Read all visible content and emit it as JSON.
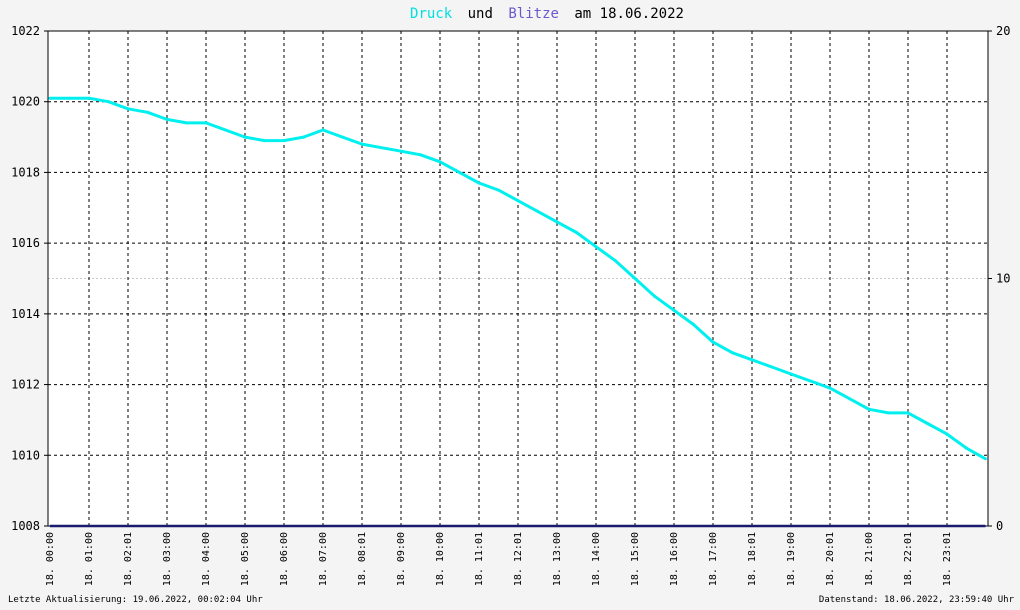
{
  "title": {
    "parts": [
      {
        "text": "Druck",
        "color": "#00e0e0"
      },
      {
        "text": "und",
        "color": "#000000"
      },
      {
        "text": "Blitze",
        "color": "#6a5acd"
      },
      {
        "text": "am 18.06.2022",
        "color": "#000000"
      }
    ]
  },
  "footer": {
    "left": "Letzte Aktualisierung: 19.06.2022, 00:02:04 Uhr",
    "right": "Datenstand: 18.06.2022, 23:59:40 Uhr"
  },
  "colors": {
    "background": "#f4f4f4",
    "plot_background": "#ffffff",
    "pressure_line": "#00f0f0",
    "lightning_line": "#1a1a6e",
    "grid": "#000000",
    "midline": "#c8c8c8"
  },
  "chart_data": {
    "type": "line",
    "grid": true,
    "y_left": {
      "range": [
        1008,
        1022
      ],
      "ticks": [
        "1008",
        "1010",
        "1012",
        "1014",
        "1016",
        "1018",
        "1020",
        "1022"
      ]
    },
    "y_right": {
      "range": [
        0,
        20
      ],
      "ticks": [
        "0",
        "10",
        "20"
      ]
    },
    "x_ticks": [
      "18. 00:00",
      "18. 01:00",
      "18. 02:01",
      "18. 03:00",
      "18. 04:00",
      "18. 05:00",
      "18. 06:00",
      "18. 07:00",
      "18. 08:01",
      "18. 09:00",
      "18. 10:00",
      "18. 11:01",
      "18. 12:01",
      "18. 13:00",
      "18. 14:00",
      "18. 15:00",
      "18. 16:00",
      "18. 17:00",
      "18. 18:01",
      "18. 19:00",
      "18. 20:01",
      "18. 21:00",
      "18. 22:01",
      "18. 23:01"
    ],
    "series": [
      {
        "name": "Druck",
        "axis": "left",
        "x": [
          "00:00",
          "00:30",
          "01:00",
          "01:30",
          "02:00",
          "02:30",
          "03:00",
          "03:30",
          "04:00",
          "04:30",
          "05:00",
          "05:30",
          "06:00",
          "06:30",
          "07:00",
          "07:30",
          "08:00",
          "08:30",
          "09:00",
          "09:30",
          "10:00",
          "10:30",
          "11:00",
          "11:30",
          "12:00",
          "12:30",
          "13:00",
          "13:30",
          "14:00",
          "14:30",
          "15:00",
          "15:30",
          "16:00",
          "16:30",
          "17:00",
          "17:30",
          "18:00",
          "18:30",
          "19:00",
          "19:30",
          "20:00",
          "20:30",
          "21:00",
          "21:30",
          "22:00",
          "22:30",
          "23:00",
          "23:30",
          "23:59"
        ],
        "y": [
          1020.1,
          1020.1,
          1020.1,
          1020.0,
          1019.8,
          1019.7,
          1019.5,
          1019.4,
          1019.4,
          1019.2,
          1019.0,
          1018.9,
          1018.9,
          1019.0,
          1019.2,
          1019.0,
          1018.8,
          1018.7,
          1018.6,
          1018.5,
          1018.3,
          1018.0,
          1017.7,
          1017.5,
          1017.2,
          1016.9,
          1016.6,
          1016.3,
          1015.9,
          1015.5,
          1015.0,
          1014.5,
          1014.1,
          1013.7,
          1013.2,
          1012.9,
          1012.7,
          1012.5,
          1012.3,
          1012.1,
          1011.9,
          1011.6,
          1011.3,
          1011.2,
          1011.2,
          1010.9,
          1010.6,
          1010.2,
          1009.9
        ]
      },
      {
        "name": "Blitze",
        "axis": "right",
        "x": [
          "00:00",
          "23:59"
        ],
        "y": [
          0,
          0
        ]
      }
    ]
  }
}
